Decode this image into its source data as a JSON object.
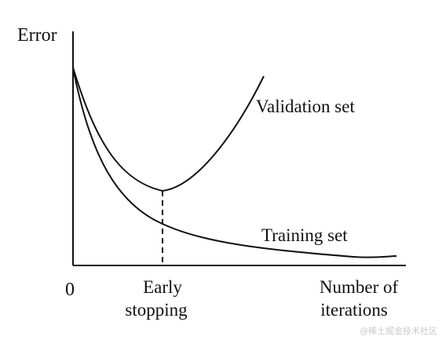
{
  "figure": {
    "y_axis_label": "Error",
    "origin_label": "0",
    "x_axis_label_line1": "Number of",
    "x_axis_label_line2": "iterations",
    "marker_label_line1": "Early",
    "marker_label_line2": "stopping",
    "validation_curve_label": "Validation set",
    "training_curve_label": "Training set",
    "watermark": "@稀土掘金技术社区"
  },
  "colors": {
    "ink": "#111111",
    "background": "#ffffff",
    "watermark": "#c9c9c9"
  }
}
